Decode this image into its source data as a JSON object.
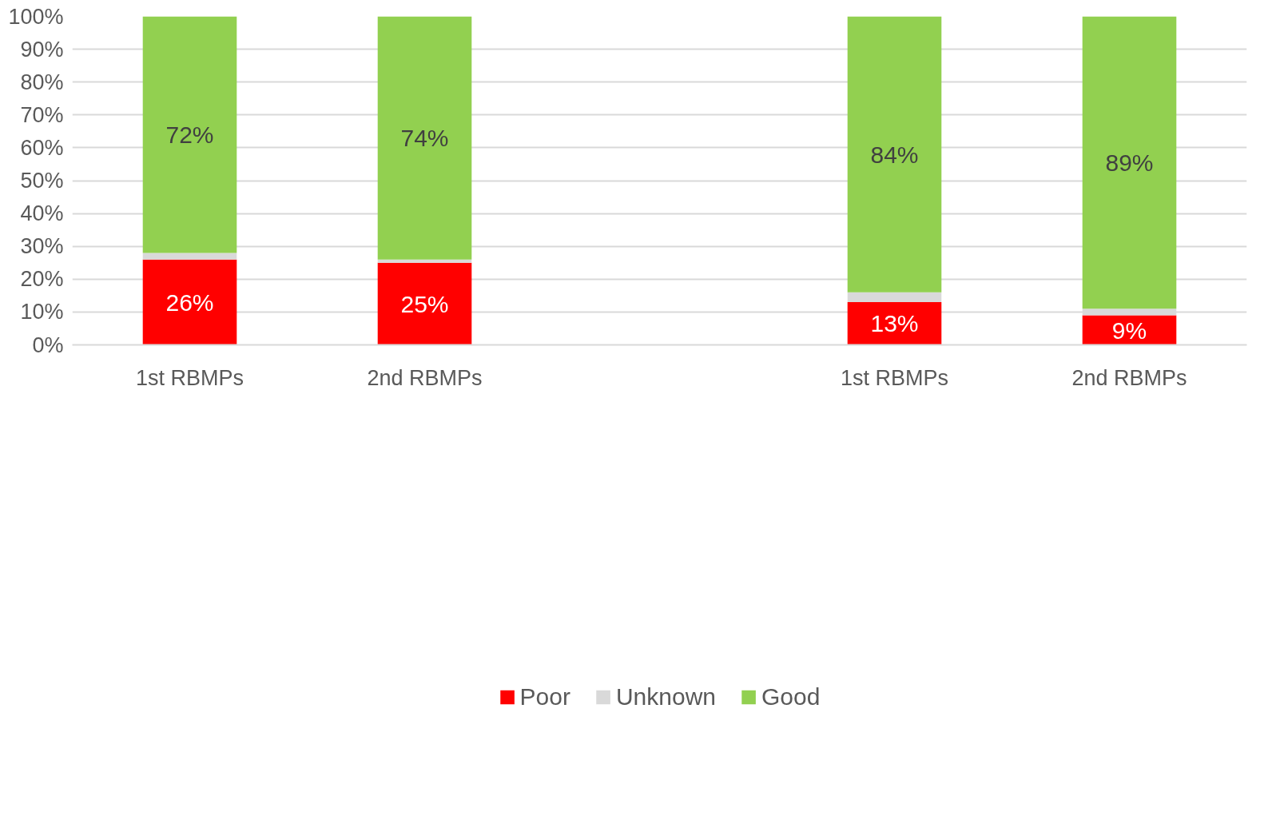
{
  "chart_data": {
    "type": "bar",
    "stacked": true,
    "categories": [
      "1st RBMPs",
      "2nd RBMPs",
      null,
      "1st RBMPs",
      "2nd RBMPs"
    ],
    "series": [
      {
        "name": "Poor",
        "color": "#ff0000",
        "values": [
          26,
          25,
          null,
          13,
          9
        ],
        "value_labels": [
          "26%",
          "25%",
          null,
          "13%",
          "9%"
        ]
      },
      {
        "name": "Unknown",
        "color": "#d9d9d9",
        "values": [
          2,
          1,
          null,
          3,
          2
        ]
      },
      {
        "name": "Good",
        "color": "#92d050",
        "values": [
          72,
          74,
          null,
          84,
          89
        ],
        "value_labels": [
          "72%",
          "74%",
          null,
          "84%",
          "89%"
        ]
      }
    ],
    "ylim": [
      0,
      100
    ],
    "yticks": [
      {
        "value": 0,
        "label": "0%"
      },
      {
        "value": 10,
        "label": "10%"
      },
      {
        "value": 20,
        "label": "20%"
      },
      {
        "value": 30,
        "label": "30%"
      },
      {
        "value": 40,
        "label": "40%"
      },
      {
        "value": 50,
        "label": "50%"
      },
      {
        "value": 60,
        "label": "60%"
      },
      {
        "value": 70,
        "label": "70%"
      },
      {
        "value": 80,
        "label": "80%"
      },
      {
        "value": 90,
        "label": "90%"
      },
      {
        "value": 100,
        "label": "100%"
      }
    ],
    "grid": "y",
    "legend": "bottom"
  }
}
